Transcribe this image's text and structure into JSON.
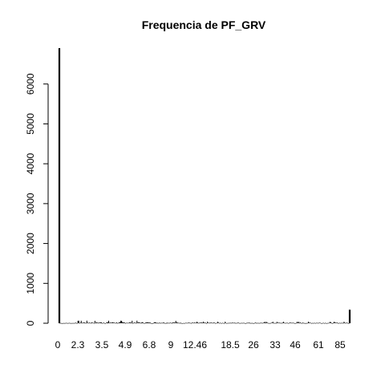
{
  "chart_data": {
    "type": "bar",
    "title": "Frequencia de PF_GRV",
    "xlabel": "",
    "ylabel": "",
    "ylim": [
      0,
      6900
    ],
    "y_ticks": [
      0,
      1000,
      2000,
      3000,
      4000,
      5000,
      6000
    ],
    "y_tick_labels": [
      "0",
      "1000",
      "2000",
      "3000",
      "4000",
      "5000",
      "6000"
    ],
    "x_tick_labels": [
      "0",
      "2.3",
      "3.5",
      "4.9",
      "6.8",
      "9",
      "12.46",
      "18.5",
      "26",
      "33",
      "46",
      "61",
      "85"
    ],
    "n_bars": 360,
    "highlighted_bars": [
      {
        "label": "0",
        "value": 6900,
        "position": "first"
      },
      {
        "label": "",
        "value": 340,
        "position": "last"
      }
    ],
    "background_bar_value_range": [
      0,
      60
    ],
    "grid": false,
    "legend": "none",
    "bar_color": "#000000"
  }
}
